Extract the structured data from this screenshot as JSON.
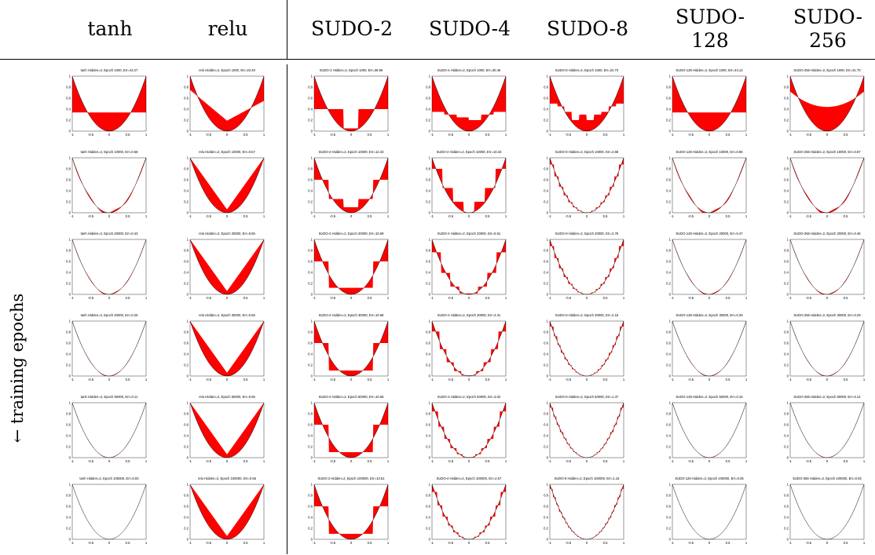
{
  "columns": [
    {
      "key": "tanh",
      "label": "tanh",
      "steps": 0
    },
    {
      "key": "relu",
      "label": "relu",
      "steps": 0
    },
    {
      "key": "sudo2",
      "label": "SUDO-2",
      "steps": 2
    },
    {
      "key": "sudo4",
      "label": "SUDO-4",
      "steps": 4
    },
    {
      "key": "sudo8",
      "label": "SUDO-8",
      "steps": 8
    },
    {
      "key": "sudo128",
      "label": "SUDO-\n128",
      "steps": 128
    },
    {
      "key": "sudo256",
      "label": "SUDO-\n256",
      "steps": 256
    }
  ],
  "row_axis_label": "← training epochs",
  "fill_color": "#ff0000",
  "target_color": "#000000",
  "chart_data": {
    "type": "grid-of-function-approximation-plots",
    "target_function": "y = x^2",
    "xlim": [
      -1,
      1
    ],
    "ylim": [
      0,
      1
    ],
    "xticks": [
      "-1",
      "-0.5",
      "0",
      "0.5",
      "1"
    ],
    "yticks": [
      "0",
      "0.2",
      "0.4",
      "0.6",
      "0.8",
      "1"
    ],
    "epochs": [
      1000,
      10000,
      20000,
      30000,
      50000,
      100000
    ],
    "panels": [
      [
        {
          "title": "tanh Hidden=2, Epoch 1000, Err=43.27",
          "approx": {
            "kind": "flat",
            "level": 0.34
          }
        },
        {
          "title": "relu Hidden=2, Epoch 1000, Err=22.49",
          "approx": {
            "kind": "vee",
            "left": 0.75,
            "min": 0.19,
            "right": 0.55,
            "xmin": 0.0
          }
        },
        {
          "title": "SUDO-2 Hidden=2, Epoch 1000, Err=38.96",
          "approx": {
            "kind": "steps",
            "levels": [
              0.4,
              0.4,
              0.05,
              0.4,
              0.4
            ]
          }
        },
        {
          "title": "SUDO-4 Hidden=2, Epoch 1000, Err=30.46",
          "approx": {
            "kind": "steps",
            "levels": [
              0.35,
              0.3,
              0.25,
              0.2,
              0.3,
              0.35
            ]
          }
        },
        {
          "title": "SUDO-8 Hidden=2, Epoch 1000, Err=22.73",
          "approx": {
            "kind": "steps",
            "levels": [
              0.5,
              0.45,
              0.35,
              0.2,
              0.3,
              0.2,
              0.3,
              0.35,
              0.45,
              0.5
            ]
          }
        },
        {
          "title": "SUDO-128 Hidden=2, Epoch 1000, Err=44.12",
          "approx": {
            "kind": "flat",
            "level": 0.34
          }
        },
        {
          "title": "SUDO-256 Hidden=2, Epoch 1000, Err=31.70",
          "approx": {
            "kind": "flat-curve",
            "level": 0.22,
            "amp": 0.38
          }
        }
      ],
      [
        {
          "title": "tanh Hidden=2, Epoch 10000, Err=0.68",
          "approx": {
            "kind": "close",
            "wobble": 0.03
          }
        },
        {
          "title": "relu Hidden=2, Epoch 10000, Err=0.57",
          "approx": {
            "kind": "vee",
            "left": 1.0,
            "min": 0.06,
            "right": 1.0,
            "xmin": 0.0
          }
        },
        {
          "title": "SUDO-2 Hidden=2, Epoch 10000, Err=12.33",
          "approx": {
            "kind": "steps",
            "levels": [
              0.6,
              0.25,
              0.1,
              0.25,
              0.6
            ]
          }
        },
        {
          "title": "SUDO-4 Hidden=2, Epoch 10000, Err=10.33",
          "approx": {
            "kind": "steps",
            "levels": [
              0.8,
              0.45,
              0.2,
              0.0,
              0.2,
              0.45,
              0.8
            ]
          }
        },
        {
          "title": "SUDO-8 Hidden=2, Epoch 10000, Err=3.68",
          "approx": {
            "kind": "stairs",
            "n": 16
          }
        },
        {
          "title": "SUDO-128 Hidden=2, Epoch 10000, Err=0.96",
          "approx": {
            "kind": "close",
            "wobble": 0.03
          }
        },
        {
          "title": "SUDO-256 Hidden=2, Epoch 10000, Err=0.87",
          "approx": {
            "kind": "close",
            "wobble": 0.03
          }
        }
      ],
      [
        {
          "title": "tanh Hidden=2, Epoch 20000, Err=0.43",
          "approx": {
            "kind": "close",
            "wobble": 0.015
          }
        },
        {
          "title": "relu Hidden=2, Epoch 20000, Err=0.55",
          "approx": {
            "kind": "vee",
            "left": 1.0,
            "min": 0.06,
            "right": 1.0,
            "xmin": 0.0
          }
        },
        {
          "title": "SUDO-2 Hidden=2, Epoch 20000, Err=10.69",
          "approx": {
            "kind": "steps",
            "levels": [
              0.6,
              0.12,
              0.12,
              0.12,
              0.6
            ]
          }
        },
        {
          "title": "SUDO-4 Hidden=2, Epoch 20000, Err=5.61",
          "approx": {
            "kind": "stairs",
            "n": 8
          }
        },
        {
          "title": "SUDO-8 Hidden=2, Epoch 20000, Err=2.78",
          "approx": {
            "kind": "stairs",
            "n": 16
          }
        },
        {
          "title": "SUDO-128 Hidden=2, Epoch 20000, Err=0.47",
          "approx": {
            "kind": "close",
            "wobble": 0.015
          }
        },
        {
          "title": "SUDO-256 Hidden=2, Epoch 20000, Err=0.46",
          "approx": {
            "kind": "close",
            "wobble": 0.015
          }
        }
      ],
      [
        {
          "title": "tanh Hidden=2, Epoch 30000, Err=0.25",
          "approx": {
            "kind": "close",
            "wobble": 0.01
          }
        },
        {
          "title": "relu Hidden=2, Epoch 30000, Err=0.55",
          "approx": {
            "kind": "vee",
            "left": 1.0,
            "min": 0.06,
            "right": 1.0,
            "xmin": 0.0
          }
        },
        {
          "title": "SUDO-2 Hidden=2, Epoch 30000, Err=10.68",
          "approx": {
            "kind": "steps",
            "levels": [
              0.6,
              0.1,
              0.1,
              0.1,
              0.6
            ]
          }
        },
        {
          "title": "SUDO-4 Hidden=2, Epoch 30000, Err=4.31",
          "approx": {
            "kind": "stairs",
            "n": 10
          }
        },
        {
          "title": "SUDO-8 Hidden=2, Epoch 30000, Err=2.15",
          "approx": {
            "kind": "stairs",
            "n": 20
          }
        },
        {
          "title": "SUDO-128 Hidden=2, Epoch 30000, Err=0.29",
          "approx": {
            "kind": "close",
            "wobble": 0.01
          }
        },
        {
          "title": "SUDO-256 Hidden=2, Epoch 30000, Err=0.29",
          "approx": {
            "kind": "close",
            "wobble": 0.01
          }
        }
      ],
      [
        {
          "title": "tanh Hidden=2, Epoch 50000, Err=0.11",
          "approx": {
            "kind": "close",
            "wobble": 0.006
          }
        },
        {
          "title": "relu Hidden=2, Epoch 50000, Err=0.55",
          "approx": {
            "kind": "vee",
            "left": 1.0,
            "min": 0.06,
            "right": 1.0,
            "xmin": 0.0
          }
        },
        {
          "title": "SUDO-2 Hidden=2, Epoch 50000, Err=10.66",
          "approx": {
            "kind": "steps",
            "levels": [
              0.6,
              0.1,
              0.1,
              0.1,
              0.6
            ]
          }
        },
        {
          "title": "SUDO-4 Hidden=2, Epoch 50000, Err=3.02",
          "approx": {
            "kind": "stairs",
            "n": 12
          }
        },
        {
          "title": "SUDO-8 Hidden=2, Epoch 50000, Err=1.47",
          "approx": {
            "kind": "stairs",
            "n": 22
          }
        },
        {
          "title": "SUDO-128 Hidden=2, Epoch 50000, Err=0.16",
          "approx": {
            "kind": "close",
            "wobble": 0.006
          }
        },
        {
          "title": "SUDO-256 Hidden=2, Epoch 50000, Err=0.14",
          "approx": {
            "kind": "close",
            "wobble": 0.006
          }
        }
      ],
      [
        {
          "title": "tanh Hidden=2, Epoch 100000, Err=0.03",
          "approx": {
            "kind": "close",
            "wobble": 0.0
          }
        },
        {
          "title": "relu Hidden=2, Epoch 100000, Err=0.55",
          "approx": {
            "kind": "vee",
            "left": 1.0,
            "min": 0.06,
            "right": 1.0,
            "xmin": 0.0
          }
        },
        {
          "title": "SUDO-2 Hidden=2, Epoch 100000, Err=10.51",
          "approx": {
            "kind": "steps",
            "levels": [
              0.6,
              0.1,
              0.1,
              0.1,
              0.6
            ]
          }
        },
        {
          "title": "SUDO-4 Hidden=2, Epoch 100000, Err=2.57",
          "approx": {
            "kind": "stairs",
            "n": 14
          }
        },
        {
          "title": "SUDO-8 Hidden=2, Epoch 100000, Err=1.16",
          "approx": {
            "kind": "stairs",
            "n": 24
          }
        },
        {
          "title": "SUDO-128 Hidden=2, Epoch 100000, Err=0.05",
          "approx": {
            "kind": "close",
            "wobble": 0.002
          }
        },
        {
          "title": "SUDO-256 Hidden=2, Epoch 100000, Err=0.03",
          "approx": {
            "kind": "close",
            "wobble": 0.002
          }
        }
      ]
    ]
  }
}
